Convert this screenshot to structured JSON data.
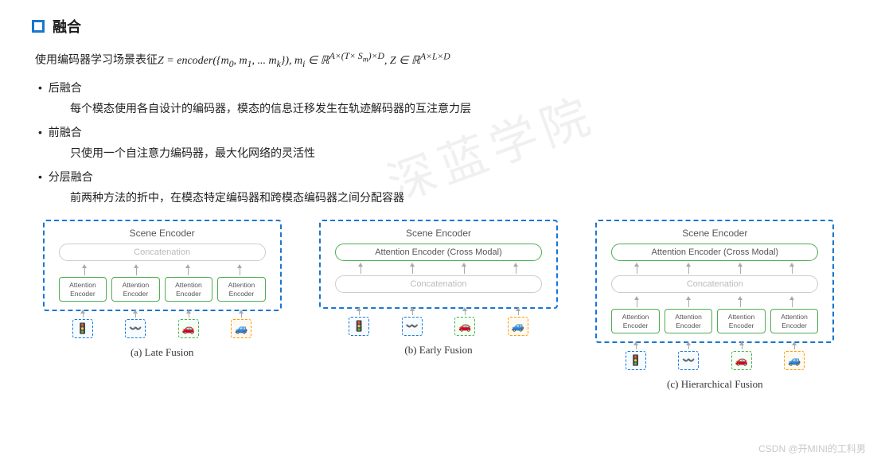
{
  "header": {
    "title": "融合",
    "icon_color": "#1976d2"
  },
  "formula": {
    "prefix": "使用编码器学习场景表征",
    "expr_html": "Z = encoder({m<sub>0</sub>, m<sub>1</sub>, ... m<sub>k</sub>}),  m<sub>i</sub> ∈ ℝ<sup>A×(T× S<sub>m</sub>)×D</sup>,  Z ∈ ℝ<sup>A×L×D</sup>"
  },
  "bullets": [
    {
      "head": "后融合",
      "desc": "每个模态使用各自设计的编码器，模态的信息迁移发生在轨迹解码器的互注意力层"
    },
    {
      "head": "前融合",
      "desc": "只使用一个自注意力编码器，最大化网络的灵活性"
    },
    {
      "head": "分层融合",
      "desc": "前两种方法的折中，在模态特定编码器和跨模态编码器之间分配容器"
    }
  ],
  "diagrams": {
    "scene_label": "Scene Encoder",
    "cross_modal_label": "Attention Encoder (Cross Modal)",
    "concat_label": "Concatenation",
    "att_encoder_label": "Attention\nEncoder",
    "icons": [
      {
        "glyph": "🚦",
        "style": "blue"
      },
      {
        "glyph": "〰️",
        "style": "blue"
      },
      {
        "glyph": "🚗",
        "style": "green"
      },
      {
        "glyph": "🚙",
        "style": "orange"
      }
    ],
    "panels": [
      {
        "caption": "(a) Late Fusion",
        "has_cross_modal": false,
        "has_att_row": true
      },
      {
        "caption": "(b) Early Fusion",
        "has_cross_modal": true,
        "has_att_row": false
      },
      {
        "caption": "(c) Hierarchical Fusion",
        "has_cross_modal": true,
        "has_att_row": true
      }
    ]
  },
  "colors": {
    "dash_border": "#1976d2",
    "green": "#4caf50",
    "concat_border": "#cccccc",
    "concat_text": "#bbbbbb",
    "arrow": "#aaaaaa"
  },
  "csdn_watermark": "CSDN @开MINI的工科男"
}
